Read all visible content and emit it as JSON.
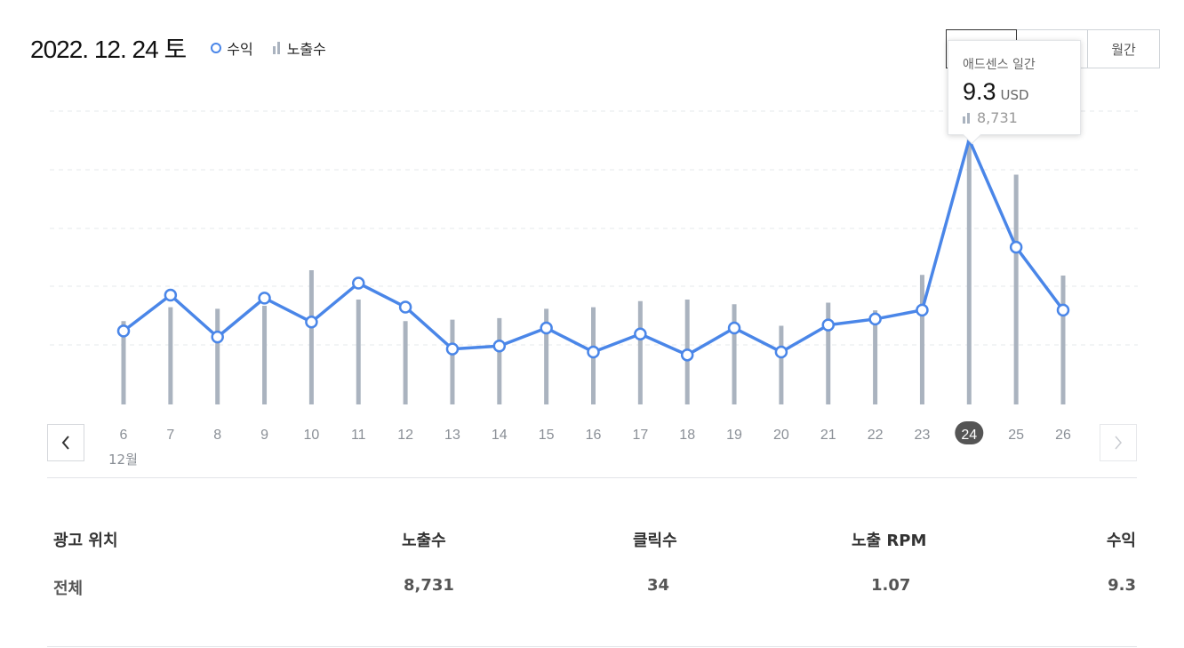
{
  "header": {
    "date": "2022. 12. 24 토",
    "legend_revenue": "수익",
    "legend_impressions": "노출수"
  },
  "period_tabs": [
    {
      "label": "",
      "active": true
    },
    {
      "label": "",
      "active": false
    },
    {
      "label": "월간",
      "active": false
    }
  ],
  "tooltip": {
    "title": "애드센스 일간",
    "value": "9.3",
    "unit": "USD",
    "impressions": "8,731"
  },
  "colors": {
    "line": "#4a86e8",
    "bar": "#aab3bf",
    "selected_bg": "#555555"
  },
  "chart_data": {
    "type": "line",
    "x_month_label": "12월",
    "categories": [
      "6",
      "7",
      "8",
      "9",
      "10",
      "11",
      "12",
      "13",
      "14",
      "15",
      "16",
      "17",
      "18",
      "19",
      "20",
      "21",
      "22",
      "23",
      "24",
      "25",
      "26"
    ],
    "selected_category": "24",
    "series": [
      {
        "name": "수익",
        "type": "line",
        "values": [
          2.9,
          4.1,
          2.7,
          4.0,
          3.2,
          4.5,
          3.7,
          2.3,
          2.4,
          3.0,
          2.2,
          2.8,
          2.1,
          3.0,
          2.2,
          3.1,
          3.3,
          3.6,
          9.3,
          5.7,
          3.6
        ]
      },
      {
        "name": "노출수",
        "type": "bar",
        "values": [
          2700,
          3150,
          3100,
          3200,
          4350,
          3400,
          2700,
          2750,
          2800,
          3100,
          3150,
          3350,
          3400,
          3250,
          2550,
          3300,
          3050,
          4200,
          8731,
          7450,
          4180
        ]
      }
    ],
    "legend_position": "top-left",
    "grid": true
  },
  "table": {
    "headers": [
      "광고 위치",
      "노출수",
      "클릭수",
      "노출 RPM",
      "수익"
    ],
    "rows": [
      [
        "전체",
        "8,731",
        "34",
        "1.07",
        "9.3"
      ]
    ]
  }
}
